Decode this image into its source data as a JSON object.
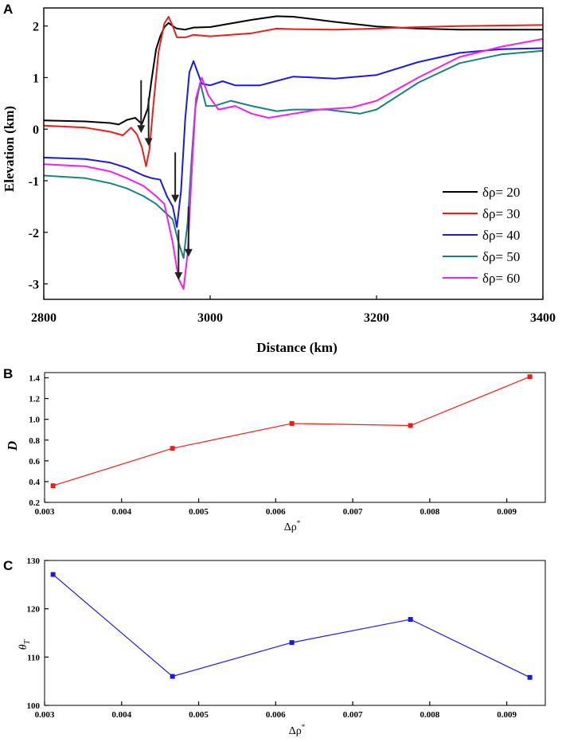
{
  "chart_data": [
    {
      "panel": "A",
      "type": "line",
      "xlabel": "Distance (km)",
      "ylabel": "Elevation (km)",
      "xlim": [
        2800,
        3400
      ],
      "ylim": [
        -3.3,
        2.35
      ],
      "xticks": [
        "2800",
        "3000",
        "3200",
        "3400"
      ],
      "yticks": [
        "-3",
        "-2",
        "-1",
        "0",
        "1",
        "2"
      ],
      "series": [
        {
          "name": "δρ= 20",
          "color": "#000000",
          "x": [
            2800,
            2850,
            2880,
            2890,
            2900,
            2910,
            2918,
            2925,
            2930,
            2935,
            2940,
            2945,
            2950,
            2955,
            2960,
            2970,
            2980,
            3000,
            3050,
            3080,
            3100,
            3150,
            3200,
            3250,
            3300,
            3350,
            3400
          ],
          "y": [
            0.17,
            0.15,
            0.12,
            0.09,
            0.18,
            0.22,
            0.1,
            0.4,
            1.0,
            1.55,
            1.8,
            1.98,
            2.06,
            2.0,
            1.95,
            1.93,
            1.97,
            1.98,
            2.12,
            2.19,
            2.18,
            2.08,
            1.99,
            1.95,
            1.93,
            1.93,
            1.93
          ]
        },
        {
          "name": "δρ= 30",
          "color": "#e8201c",
          "x": [
            2800,
            2850,
            2880,
            2895,
            2905,
            2912,
            2918,
            2923,
            2927,
            2932,
            2938,
            2945,
            2950,
            2955,
            2960,
            2970,
            2980,
            3000,
            3050,
            3080,
            3100,
            3150,
            3200,
            3250,
            3300,
            3350,
            3400
          ],
          "y": [
            0.07,
            0.03,
            -0.05,
            -0.12,
            0.03,
            -0.1,
            -0.35,
            -0.72,
            -0.4,
            0.5,
            1.5,
            2.05,
            2.18,
            2.0,
            1.78,
            1.78,
            1.83,
            1.8,
            1.86,
            1.95,
            1.94,
            1.93,
            1.95,
            1.98,
            2.0,
            2.01,
            2.02
          ]
        },
        {
          "name": "δρ= 40",
          "color": "#1b1bd6",
          "x": [
            2800,
            2850,
            2880,
            2900,
            2920,
            2930,
            2940,
            2948,
            2955,
            2960,
            2965,
            2970,
            2975,
            2980,
            2985,
            2990,
            3000,
            3015,
            3030,
            3060,
            3100,
            3150,
            3200,
            3250,
            3300,
            3350,
            3400
          ],
          "y": [
            -0.55,
            -0.58,
            -0.65,
            -0.75,
            -0.9,
            -0.95,
            -0.98,
            -1.3,
            -1.5,
            -1.9,
            -1.2,
            0.2,
            1.1,
            1.32,
            1.1,
            0.88,
            0.85,
            0.93,
            0.85,
            0.85,
            1.02,
            0.98,
            1.05,
            1.3,
            1.48,
            1.55,
            1.57
          ]
        },
        {
          "name": "δρ= 50",
          "color": "#1a8080",
          "x": [
            2800,
            2850,
            2880,
            2900,
            2920,
            2935,
            2945,
            2955,
            2962,
            2968,
            2973,
            2978,
            2982,
            2988,
            2995,
            3005,
            3025,
            3050,
            3080,
            3100,
            3140,
            3180,
            3200,
            3250,
            3300,
            3350,
            3400
          ],
          "y": [
            -0.9,
            -0.95,
            -1.05,
            -1.15,
            -1.3,
            -1.45,
            -1.6,
            -1.75,
            -2.2,
            -2.5,
            -1.8,
            -0.5,
            0.4,
            0.9,
            0.45,
            0.45,
            0.55,
            0.45,
            0.35,
            0.38,
            0.38,
            0.3,
            0.38,
            0.9,
            1.28,
            1.45,
            1.52
          ]
        },
        {
          "name": "δρ= 60",
          "color": "#f020f0",
          "x": [
            2800,
            2850,
            2880,
            2900,
            2920,
            2935,
            2945,
            2955,
            2962,
            2968,
            2973,
            2978,
            2983,
            2990,
            2998,
            3010,
            3030,
            3050,
            3070,
            3100,
            3130,
            3170,
            3200,
            3250,
            3300,
            3350,
            3400
          ],
          "y": [
            -0.68,
            -0.72,
            -0.82,
            -0.95,
            -1.1,
            -1.3,
            -1.45,
            -2.2,
            -2.9,
            -3.1,
            -2.4,
            -0.8,
            0.6,
            1.0,
            0.65,
            0.38,
            0.45,
            0.3,
            0.22,
            0.3,
            0.38,
            0.42,
            0.55,
            1.0,
            1.4,
            1.6,
            1.75
          ]
        }
      ],
      "arrows": [
        {
          "x": 2917,
          "y_from": 0.95,
          "y_to": 0.0
        },
        {
          "x": 2926,
          "y_from": 0.6,
          "y_to": -0.25
        },
        {
          "x": 2958,
          "y_from": -0.45,
          "y_to": -1.35
        },
        {
          "x": 2974,
          "y_from": -1.5,
          "y_to": -2.4
        },
        {
          "x": 2962,
          "y_from": -1.95,
          "y_to": -2.85
        }
      ]
    },
    {
      "panel": "B",
      "type": "line",
      "xlabel": "Δρ",
      "xlabel_sup": "*",
      "ylabel": "D",
      "xlim": [
        0.003,
        0.0095
      ],
      "ylim": [
        0.2,
        1.45
      ],
      "xticks": [
        "0.003",
        "0.004",
        "0.005",
        "0.006",
        "0.007",
        "0.008",
        "0.009"
      ],
      "yticks": [
        "0.2",
        "0.4",
        "0.6",
        "0.8",
        "1.0",
        "1.2",
        "1.4"
      ],
      "series": [
        {
          "name": "D",
          "color": "#e8201c",
          "x": [
            0.00311,
            0.00466,
            0.00621,
            0.00775,
            0.0093
          ],
          "y": [
            0.36,
            0.72,
            0.96,
            0.94,
            1.41
          ]
        }
      ]
    },
    {
      "panel": "C",
      "type": "line",
      "xlabel": "Δρ",
      "xlabel_sup": "*",
      "ylabel": "θ",
      "ylabel_sub": "T",
      "xlim": [
        0.003,
        0.0095
      ],
      "ylim": [
        100,
        130
      ],
      "xticks": [
        "0.003",
        "0.004",
        "0.005",
        "0.006",
        "0.007",
        "0.008",
        "0.009"
      ],
      "yticks": [
        "100",
        "110",
        "120",
        "130"
      ],
      "series": [
        {
          "name": "θT",
          "color": "#1b1bd6",
          "x": [
            0.00311,
            0.00466,
            0.00621,
            0.00775,
            0.0093
          ],
          "y": [
            127.1,
            106.0,
            113.0,
            117.8,
            105.8
          ]
        }
      ]
    }
  ]
}
